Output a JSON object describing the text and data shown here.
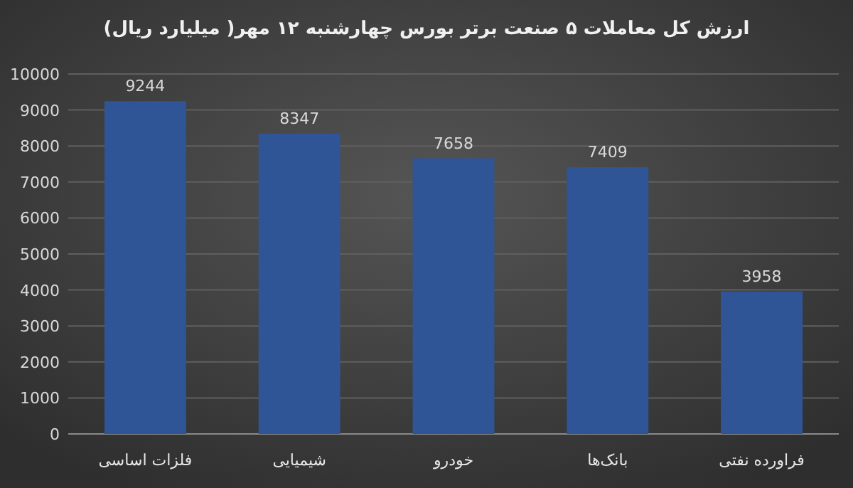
{
  "chart_data": {
    "type": "bar",
    "title": "ارزش کل معاملات ۵ صنعت برتر بورس چهارشنبه ۱۲ مهر( میلیارد ریال)",
    "categories": [
      "فلزات اساسی",
      "شیمیایی",
      "خودرو",
      "بانک‌ها",
      "فراورده نفتی"
    ],
    "values": [
      9244,
      8347,
      7658,
      7409,
      3958
    ],
    "color": "#2f5597",
    "ylim": [
      0,
      10000
    ],
    "yticks": [
      0,
      1000,
      2000,
      3000,
      4000,
      5000,
      6000,
      7000,
      8000,
      9000,
      10000
    ],
    "grid": "y",
    "data_labels": true
  }
}
